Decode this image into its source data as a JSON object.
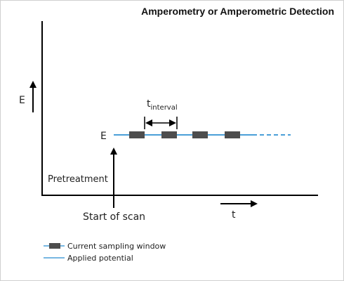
{
  "title": "Amperometry or Amperometric Detection",
  "y_axis_label": "E",
  "x_axis_label": "t",
  "potential_label": "E",
  "interval_label_main": "t",
  "interval_label_sub": "interval",
  "pretreatment_label": "Pretreatment",
  "start_label": "Start of scan",
  "legend": {
    "sampling_window": "Current sampling window",
    "applied_potential": "Applied potential"
  },
  "colors": {
    "potential_line": "#4a9fd8",
    "sampling_window": "#4d4d4d",
    "axes": "#000000"
  }
}
